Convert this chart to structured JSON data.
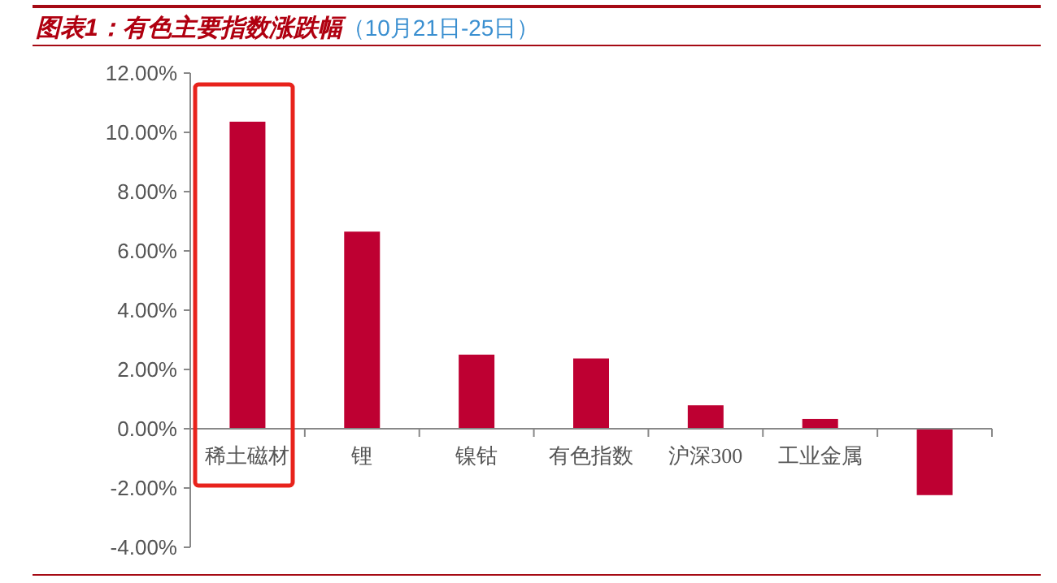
{
  "chart_data": {
    "type": "bar",
    "title": "图表1：有色主要指数涨跌幅",
    "subtitle": "（10月21日-25日）",
    "categories": [
      "稀土磁材",
      "锂",
      "镍钴",
      "有色指数",
      "沪深300",
      "工业金属",
      null
    ],
    "values": [
      10.36,
      6.65,
      2.5,
      2.37,
      0.79,
      0.33,
      -2.24
    ],
    "color": "#be0032",
    "ylim": [
      -4,
      12
    ],
    "yticks": [
      {
        "value": -4,
        "label": "-4.00%"
      },
      {
        "value": -2,
        "label": "-2.00%"
      },
      {
        "value": 0,
        "label": "0.00%"
      },
      {
        "value": 2,
        "label": "2.00%"
      },
      {
        "value": 4,
        "label": "4.00%"
      },
      {
        "value": 6,
        "label": "6.00%"
      },
      {
        "value": 8,
        "label": "8.00%"
      },
      {
        "value": 10,
        "label": "10.00%"
      },
      {
        "value": 12,
        "label": "12.00%"
      }
    ],
    "grid": false
  }
}
